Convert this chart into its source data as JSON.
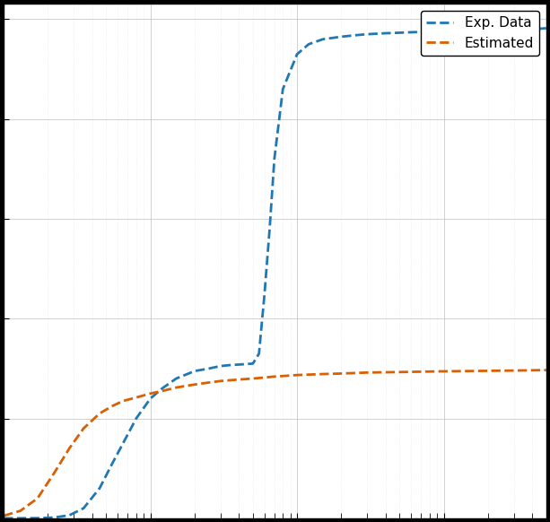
{
  "title": "",
  "xlabel": "",
  "ylabel": "",
  "xlim": [
    0.1,
    500
  ],
  "background_color": "#ffffff",
  "grid_major_color": "#c8c8c8",
  "grid_minor_color": "#e0e0e0",
  "legend_labels": [
    "Exp. Data",
    "Estimated"
  ],
  "line_colors": [
    "#1f77b4",
    "#d95f02"
  ],
  "line_width": 2.0,
  "exp_data_x": [
    0.1,
    0.13,
    0.17,
    0.22,
    0.28,
    0.35,
    0.45,
    0.55,
    0.65,
    0.8,
    1.0,
    1.2,
    1.5,
    2.0,
    2.5,
    3.0,
    3.5,
    4.0,
    4.5,
    5.0,
    5.5,
    6.0,
    6.5,
    7.0,
    8.0,
    10.0,
    12.0,
    15.0,
    20.0,
    25.0,
    30.0,
    40.0,
    50.0,
    60.0,
    80.0,
    100.0,
    150.0,
    200.0,
    300.0,
    400.0,
    500.0
  ],
  "exp_data_y": [
    1e-10,
    5e-10,
    3e-09,
    1.5e-08,
    6e-08,
    2e-07,
    6e-07,
    1.1e-06,
    1.5e-06,
    2e-06,
    2.4e-06,
    2.6e-06,
    2.8e-06,
    2.95e-06,
    3e-06,
    3.05e-06,
    3.07e-06,
    3.08e-06,
    3.09e-06,
    3.1e-06,
    3.3e-06,
    4.5e-06,
    5.8e-06,
    7.2e-06,
    8.6e-06,
    9.3e-06,
    9.5e-06,
    9.6e-06,
    9.65e-06,
    9.68e-06,
    9.7e-06,
    9.72e-06,
    9.73e-06,
    9.74e-06,
    9.75e-06,
    9.76e-06,
    9.77e-06,
    9.78e-06,
    9.79e-06,
    9.8e-06,
    9.82e-06
  ],
  "est_data_x": [
    0.1,
    0.13,
    0.17,
    0.22,
    0.28,
    0.35,
    0.45,
    0.55,
    0.65,
    0.8,
    1.0,
    1.2,
    1.5,
    2.0,
    2.5,
    3.0,
    4.0,
    5.0,
    6.0,
    7.0,
    8.0,
    10.0,
    15.0,
    20.0,
    30.0,
    50.0,
    80.0,
    100.0,
    150.0,
    200.0,
    300.0,
    400.0,
    500.0
  ],
  "est_data_y": [
    5e-08,
    1.5e-07,
    4e-07,
    9e-07,
    1.4e-06,
    1.8e-06,
    2.1e-06,
    2.25e-06,
    2.35e-06,
    2.42e-06,
    2.5e-06,
    2.55e-06,
    2.62e-06,
    2.68e-06,
    2.72e-06,
    2.75e-06,
    2.78e-06,
    2.8e-06,
    2.82e-06,
    2.84e-06,
    2.85e-06,
    2.87e-06,
    2.89e-06,
    2.9e-06,
    2.92e-06,
    2.93e-06,
    2.94e-06,
    2.945e-06,
    2.95e-06,
    2.955e-06,
    2.96e-06,
    2.965e-06,
    2.97e-06
  ]
}
